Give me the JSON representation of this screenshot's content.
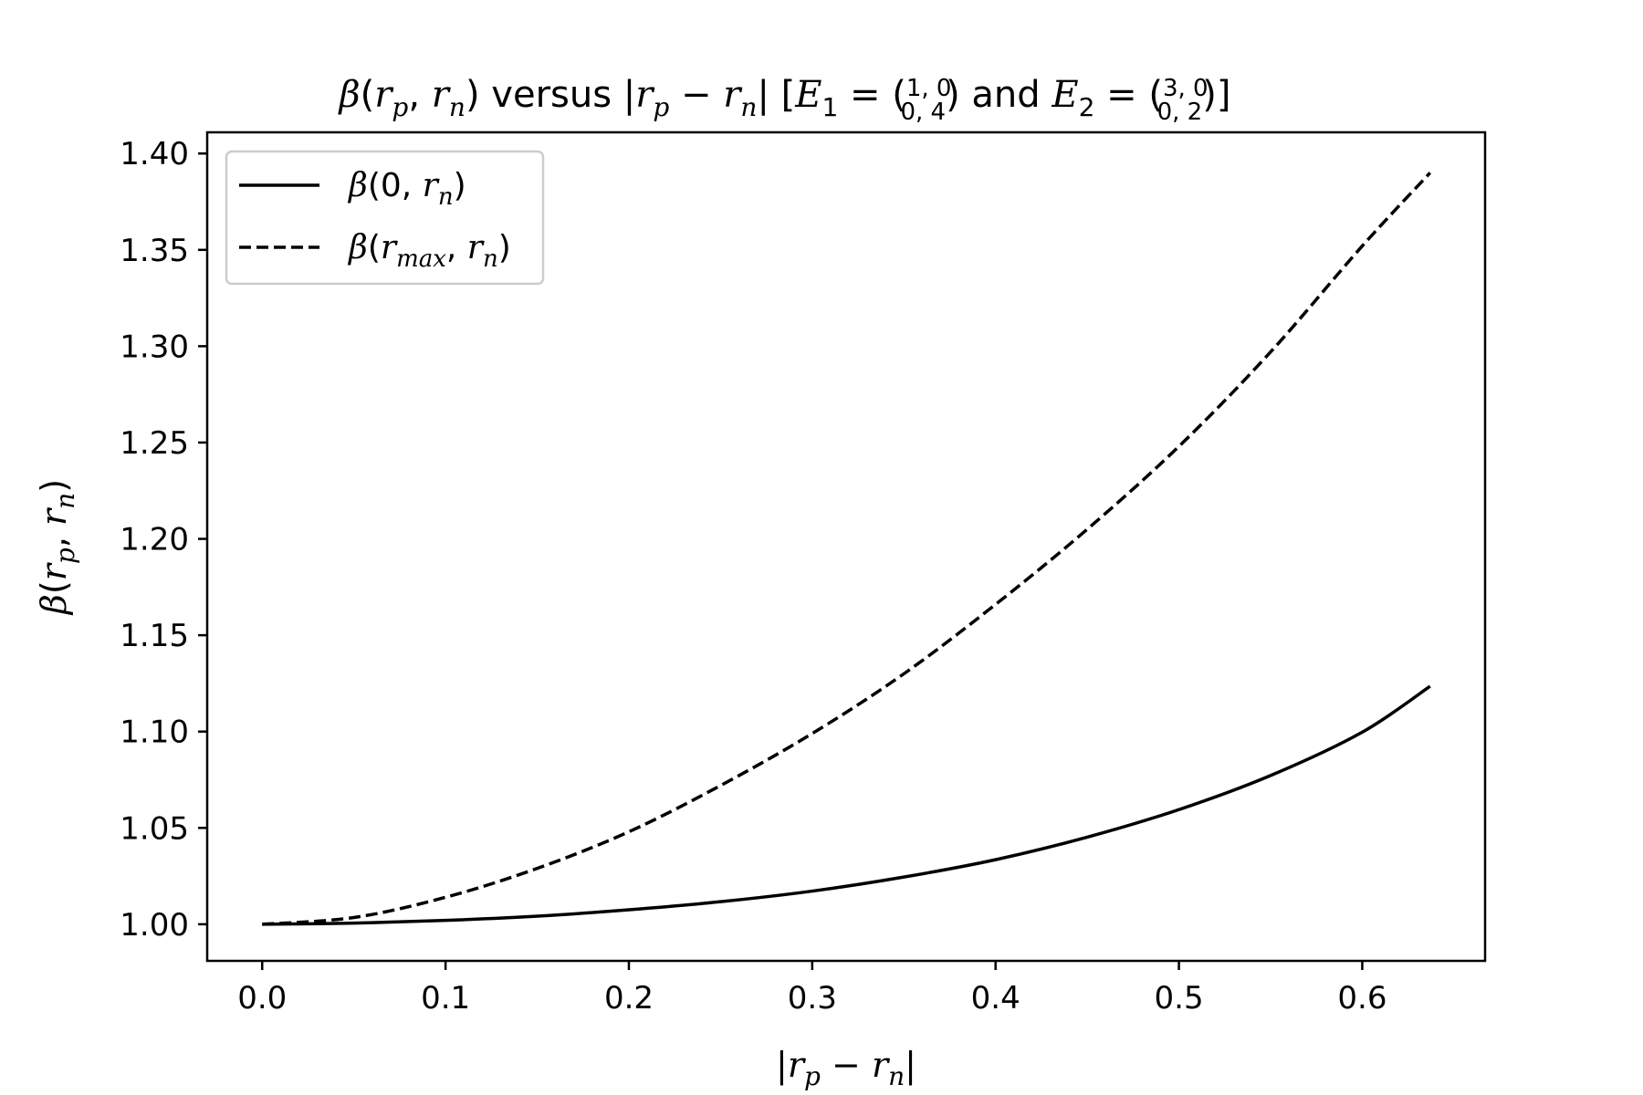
{
  "chart_data": {
    "type": "line",
    "title": "β(rp, rn) versus |rp − rn| [E1 = (1, 0 / 0, 4) and E2 = (3, 0 / 0, 2)]",
    "title_parts": {
      "beta": "β",
      "r": "r",
      "p": "p",
      "n": "n",
      "versus": "versus",
      "e": "E",
      "one": "1",
      "two": "2",
      "and": "and",
      "e1_row1": "1, 0",
      "e1_row2": "0, 4",
      "e2_row1": "3, 0",
      "e2_row2": "0, 2"
    },
    "xlabel": "|rp − rn|",
    "ylabel": "β(rp, rn)",
    "xlim": [
      -0.03,
      0.667
    ],
    "ylim": [
      0.981,
      1.411
    ],
    "xticks": [
      "0.0",
      "0.1",
      "0.2",
      "0.3",
      "0.4",
      "0.5",
      "0.6"
    ],
    "yticks": [
      "1.00",
      "1.05",
      "1.10",
      "1.15",
      "1.20",
      "1.25",
      "1.30",
      "1.35",
      "1.40"
    ],
    "legend_position": "upper-left",
    "grid": false,
    "line_color": "#000000",
    "series": [
      {
        "name": "β(0, rn)",
        "name_parts": {
          "beta": "β",
          "arg1": "0",
          "r": "r",
          "sub": "n"
        },
        "style": "solid",
        "x": [
          0.0,
          0.05,
          0.1,
          0.15,
          0.2,
          0.25,
          0.3,
          0.35,
          0.4,
          0.45,
          0.5,
          0.55,
          0.6,
          0.637
        ],
        "y": [
          1.0,
          1.0006,
          1.002,
          1.0042,
          1.0075,
          1.0117,
          1.0172,
          1.0245,
          1.0335,
          1.0452,
          1.0595,
          1.0772,
          1.0997,
          1.1235
        ]
      },
      {
        "name": "β(rmax, rn)",
        "name_parts": {
          "beta": "β",
          "r1": "r",
          "sub1": "max",
          "r2": "r",
          "sub2": "n"
        },
        "style": "dashed",
        "x": [
          0.0,
          0.05,
          0.1,
          0.15,
          0.2,
          0.25,
          0.3,
          0.35,
          0.4,
          0.45,
          0.5,
          0.55,
          0.6,
          0.637
        ],
        "y": [
          1.0,
          1.0035,
          1.014,
          1.029,
          1.048,
          1.072,
          1.099,
          1.13,
          1.166,
          1.205,
          1.248,
          1.297,
          1.352,
          1.39
        ]
      }
    ]
  }
}
